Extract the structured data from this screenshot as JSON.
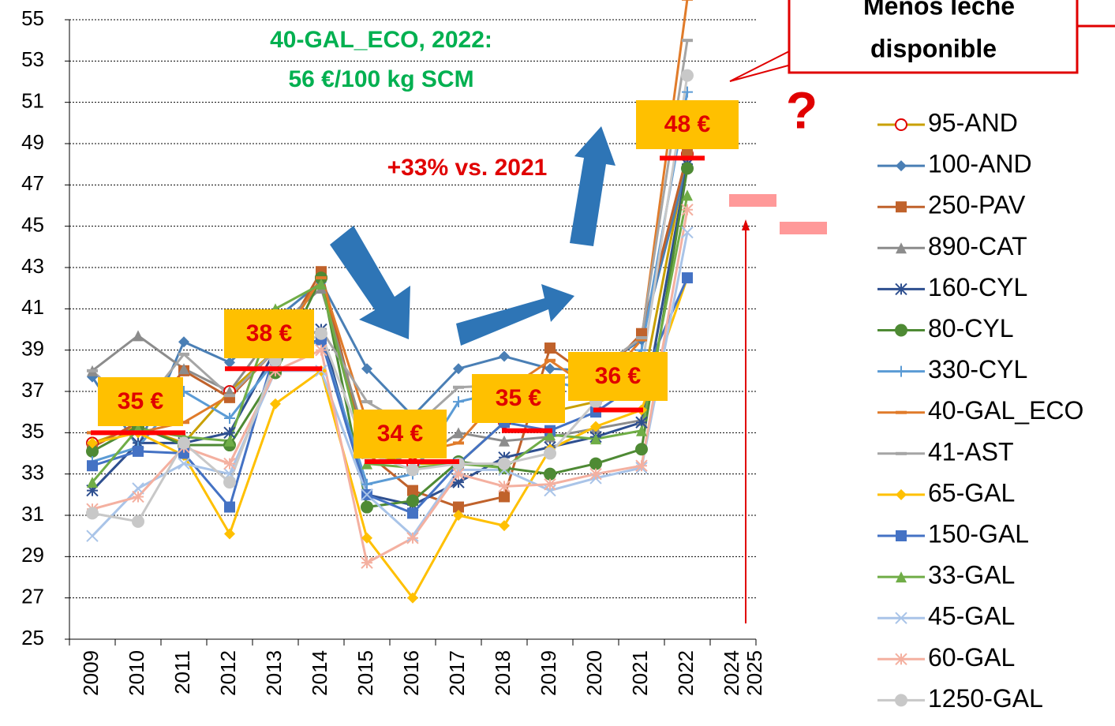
{
  "chart_data": {
    "type": "line",
    "categories": [
      "2009",
      "2010",
      "2011",
      "2012",
      "2013",
      "2014",
      "2015",
      "2016",
      "2017",
      "2018",
      "2019",
      "2020",
      "2021",
      "2022",
      "2024"
    ],
    "category_colors": [
      "#000",
      "#000",
      "#000",
      "#000",
      "#000",
      "#000",
      "#000",
      "#000",
      "#000",
      "#000",
      "#000",
      "#000",
      "#000",
      "#000",
      "#e00000"
    ],
    "extra_x_label": "2025",
    "ylim": [
      25,
      55
    ],
    "yticks": [
      25,
      27,
      29,
      31,
      33,
      35,
      37,
      39,
      41,
      43,
      45,
      47,
      49,
      51,
      53,
      55
    ],
    "grid": true,
    "series": [
      {
        "name": "95-AND",
        "color": "#c9a000",
        "marker": "circle",
        "marker_color": "#e00000",
        "values": [
          34.5,
          35.3,
          34.5,
          37,
          39,
          42.5,
          34,
          33.5,
          33.5,
          35.5,
          36,
          36.5,
          37,
          48.5,
          null
        ]
      },
      {
        "name": "100-AND",
        "color": "#4a7fb5",
        "marker": "diamond",
        "values": [
          37.7,
          34.3,
          39.4,
          38.4,
          40.5,
          42.3,
          38.1,
          35.8,
          38.1,
          38.7,
          38.1,
          38,
          39.5,
          48,
          null
        ]
      },
      {
        "name": "250-PAV",
        "color": "#c0622b",
        "marker": "square",
        "values": [
          34.3,
          35.5,
          38,
          36.7,
          39,
          42.8,
          34,
          32.2,
          31.4,
          31.9,
          39.1,
          37.5,
          39.8,
          48.5,
          null
        ]
      },
      {
        "name": "890-CAT",
        "color": "#8c8c8c",
        "marker": "triangle",
        "values": [
          38,
          39.7,
          38.1,
          37,
          40,
          42,
          34.5,
          33.4,
          35,
          34.6,
          34.8,
          35.2,
          35.6,
          48,
          null
        ]
      },
      {
        "name": "160-CYL",
        "color": "#2e4f8f",
        "marker": "star",
        "values": [
          32.2,
          34.5,
          34.5,
          35,
          39,
          40,
          32,
          31.5,
          32.6,
          33.8,
          34.3,
          34.8,
          35.5,
          48,
          null
        ]
      },
      {
        "name": "80-CYL",
        "color": "#4e8a34",
        "marker": "circle",
        "values": [
          34.1,
          35.3,
          34.4,
          34.4,
          37.9,
          42.5,
          31.4,
          31.7,
          33.6,
          33.3,
          33,
          33.5,
          34.2,
          47.8,
          null
        ]
      },
      {
        "name": "330-CYL",
        "color": "#5b9bd5",
        "marker": "plus",
        "values": [
          33.6,
          34.3,
          37,
          35.7,
          38.5,
          39.5,
          32.5,
          33,
          36.5,
          37,
          37.5,
          37,
          39,
          51.5,
          null
        ]
      },
      {
        "name": "40-GAL_ECO",
        "color": "#e07b2a",
        "marker": "dash",
        "values": [
          35,
          35,
          35.5,
          36.8,
          39,
          42.5,
          35.5,
          34,
          34.5,
          37,
          38.5,
          37,
          39.5,
          56,
          null
        ]
      },
      {
        "name": "41-AST",
        "color": "#a5a5a5",
        "marker": "dash",
        "values": [
          38,
          36,
          38.8,
          36.8,
          39,
          40,
          36.5,
          35.2,
          37.2,
          37.3,
          37.5,
          38,
          39.6,
          54,
          null
        ]
      },
      {
        "name": "65-GAL",
        "color": "#ffc000",
        "marker": "diamond",
        "values": [
          34.5,
          35,
          33.9,
          30.1,
          36.4,
          38,
          29.9,
          27,
          31,
          30.5,
          34.2,
          35.3,
          36.1,
          42.5,
          null
        ]
      },
      {
        "name": "150-GAL",
        "color": "#4472c4",
        "marker": "square",
        "values": [
          33.4,
          34.1,
          34,
          31.4,
          39,
          39.5,
          32,
          31.1,
          33.5,
          35.5,
          35.1,
          36,
          37.5,
          42.5,
          null
        ]
      },
      {
        "name": "33-GAL",
        "color": "#70ad47",
        "marker": "triangle",
        "values": [
          32.6,
          35.2,
          34.8,
          34.6,
          41,
          42.2,
          33.5,
          33.3,
          33.5,
          33.3,
          34.9,
          34.7,
          35.1,
          46.5,
          null
        ]
      },
      {
        "name": "45-GAL",
        "color": "#a9c4e8",
        "marker": "x",
        "values": [
          30,
          32.3,
          33.5,
          33,
          38,
          38,
          32,
          30,
          33.2,
          33.2,
          32.2,
          32.8,
          33.3,
          44.7,
          null
        ]
      },
      {
        "name": "60-GAL",
        "color": "#f4b0a0",
        "marker": "star",
        "values": [
          31.3,
          31.9,
          34.3,
          33.5,
          38,
          39,
          28.7,
          29.9,
          33,
          32.4,
          32.5,
          33,
          33.4,
          45.8,
          null
        ]
      },
      {
        "name": "1250-GAL",
        "color": "#c8c8c8",
        "marker": "circle",
        "values": [
          31.1,
          30.7,
          34.5,
          32.6,
          38.5,
          39.8,
          34,
          33.2,
          33.5,
          33.5,
          34,
          36.5,
          38,
          52.3,
          null
        ]
      }
    ],
    "levels": [
      {
        "label": "35 €",
        "value": 35
      },
      {
        "label": "38 €",
        "value": 38.1
      },
      {
        "label": "34 €",
        "value": 33.6
      },
      {
        "label": "35 €",
        "value": 35.1
      },
      {
        "label": "36 €",
        "value": 36.1
      },
      {
        "label": "48 €",
        "value": 48.3
      }
    ],
    "annotations": {
      "eco_line1": "40-GAL_ECO, 2022:",
      "eco_line2": "56 €/100 kg SCM",
      "increase": "+33% vs. 2021",
      "question": "?",
      "callout_line1": "Menos leche",
      "callout_line2": "disponible"
    }
  }
}
